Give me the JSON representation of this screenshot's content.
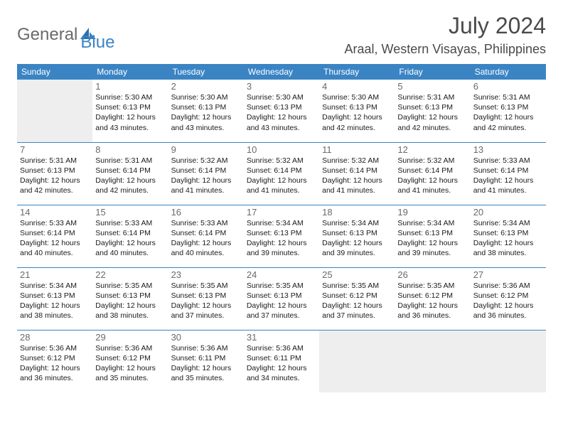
{
  "logo": {
    "text1": "General",
    "text2": "Blue"
  },
  "title": "July 2024",
  "location": "Araal, Western Visayas, Philippines",
  "colors": {
    "accent": "#3a84c4",
    "logo_gray": "#6a6a6a",
    "text_dark": "#1a1a1a",
    "muted": "#6a6a6a",
    "empty_bg": "#eeeeee",
    "bg": "#ffffff"
  },
  "days_of_week": [
    "Sunday",
    "Monday",
    "Tuesday",
    "Wednesday",
    "Thursday",
    "Friday",
    "Saturday"
  ],
  "weeks": [
    [
      null,
      {
        "n": "1",
        "sr": "Sunrise: 5:30 AM",
        "ss": "Sunset: 6:13 PM",
        "d1": "Daylight: 12 hours",
        "d2": "and 43 minutes."
      },
      {
        "n": "2",
        "sr": "Sunrise: 5:30 AM",
        "ss": "Sunset: 6:13 PM",
        "d1": "Daylight: 12 hours",
        "d2": "and 43 minutes."
      },
      {
        "n": "3",
        "sr": "Sunrise: 5:30 AM",
        "ss": "Sunset: 6:13 PM",
        "d1": "Daylight: 12 hours",
        "d2": "and 43 minutes."
      },
      {
        "n": "4",
        "sr": "Sunrise: 5:30 AM",
        "ss": "Sunset: 6:13 PM",
        "d1": "Daylight: 12 hours",
        "d2": "and 42 minutes."
      },
      {
        "n": "5",
        "sr": "Sunrise: 5:31 AM",
        "ss": "Sunset: 6:13 PM",
        "d1": "Daylight: 12 hours",
        "d2": "and 42 minutes."
      },
      {
        "n": "6",
        "sr": "Sunrise: 5:31 AM",
        "ss": "Sunset: 6:13 PM",
        "d1": "Daylight: 12 hours",
        "d2": "and 42 minutes."
      }
    ],
    [
      {
        "n": "7",
        "sr": "Sunrise: 5:31 AM",
        "ss": "Sunset: 6:13 PM",
        "d1": "Daylight: 12 hours",
        "d2": "and 42 minutes."
      },
      {
        "n": "8",
        "sr": "Sunrise: 5:31 AM",
        "ss": "Sunset: 6:14 PM",
        "d1": "Daylight: 12 hours",
        "d2": "and 42 minutes."
      },
      {
        "n": "9",
        "sr": "Sunrise: 5:32 AM",
        "ss": "Sunset: 6:14 PM",
        "d1": "Daylight: 12 hours",
        "d2": "and 41 minutes."
      },
      {
        "n": "10",
        "sr": "Sunrise: 5:32 AM",
        "ss": "Sunset: 6:14 PM",
        "d1": "Daylight: 12 hours",
        "d2": "and 41 minutes."
      },
      {
        "n": "11",
        "sr": "Sunrise: 5:32 AM",
        "ss": "Sunset: 6:14 PM",
        "d1": "Daylight: 12 hours",
        "d2": "and 41 minutes."
      },
      {
        "n": "12",
        "sr": "Sunrise: 5:32 AM",
        "ss": "Sunset: 6:14 PM",
        "d1": "Daylight: 12 hours",
        "d2": "and 41 minutes."
      },
      {
        "n": "13",
        "sr": "Sunrise: 5:33 AM",
        "ss": "Sunset: 6:14 PM",
        "d1": "Daylight: 12 hours",
        "d2": "and 41 minutes."
      }
    ],
    [
      {
        "n": "14",
        "sr": "Sunrise: 5:33 AM",
        "ss": "Sunset: 6:14 PM",
        "d1": "Daylight: 12 hours",
        "d2": "and 40 minutes."
      },
      {
        "n": "15",
        "sr": "Sunrise: 5:33 AM",
        "ss": "Sunset: 6:14 PM",
        "d1": "Daylight: 12 hours",
        "d2": "and 40 minutes."
      },
      {
        "n": "16",
        "sr": "Sunrise: 5:33 AM",
        "ss": "Sunset: 6:14 PM",
        "d1": "Daylight: 12 hours",
        "d2": "and 40 minutes."
      },
      {
        "n": "17",
        "sr": "Sunrise: 5:34 AM",
        "ss": "Sunset: 6:13 PM",
        "d1": "Daylight: 12 hours",
        "d2": "and 39 minutes."
      },
      {
        "n": "18",
        "sr": "Sunrise: 5:34 AM",
        "ss": "Sunset: 6:13 PM",
        "d1": "Daylight: 12 hours",
        "d2": "and 39 minutes."
      },
      {
        "n": "19",
        "sr": "Sunrise: 5:34 AM",
        "ss": "Sunset: 6:13 PM",
        "d1": "Daylight: 12 hours",
        "d2": "and 39 minutes."
      },
      {
        "n": "20",
        "sr": "Sunrise: 5:34 AM",
        "ss": "Sunset: 6:13 PM",
        "d1": "Daylight: 12 hours",
        "d2": "and 38 minutes."
      }
    ],
    [
      {
        "n": "21",
        "sr": "Sunrise: 5:34 AM",
        "ss": "Sunset: 6:13 PM",
        "d1": "Daylight: 12 hours",
        "d2": "and 38 minutes."
      },
      {
        "n": "22",
        "sr": "Sunrise: 5:35 AM",
        "ss": "Sunset: 6:13 PM",
        "d1": "Daylight: 12 hours",
        "d2": "and 38 minutes."
      },
      {
        "n": "23",
        "sr": "Sunrise: 5:35 AM",
        "ss": "Sunset: 6:13 PM",
        "d1": "Daylight: 12 hours",
        "d2": "and 37 minutes."
      },
      {
        "n": "24",
        "sr": "Sunrise: 5:35 AM",
        "ss": "Sunset: 6:13 PM",
        "d1": "Daylight: 12 hours",
        "d2": "and 37 minutes."
      },
      {
        "n": "25",
        "sr": "Sunrise: 5:35 AM",
        "ss": "Sunset: 6:12 PM",
        "d1": "Daylight: 12 hours",
        "d2": "and 37 minutes."
      },
      {
        "n": "26",
        "sr": "Sunrise: 5:35 AM",
        "ss": "Sunset: 6:12 PM",
        "d1": "Daylight: 12 hours",
        "d2": "and 36 minutes."
      },
      {
        "n": "27",
        "sr": "Sunrise: 5:36 AM",
        "ss": "Sunset: 6:12 PM",
        "d1": "Daylight: 12 hours",
        "d2": "and 36 minutes."
      }
    ],
    [
      {
        "n": "28",
        "sr": "Sunrise: 5:36 AM",
        "ss": "Sunset: 6:12 PM",
        "d1": "Daylight: 12 hours",
        "d2": "and 36 minutes."
      },
      {
        "n": "29",
        "sr": "Sunrise: 5:36 AM",
        "ss": "Sunset: 6:12 PM",
        "d1": "Daylight: 12 hours",
        "d2": "and 35 minutes."
      },
      {
        "n": "30",
        "sr": "Sunrise: 5:36 AM",
        "ss": "Sunset: 6:11 PM",
        "d1": "Daylight: 12 hours",
        "d2": "and 35 minutes."
      },
      {
        "n": "31",
        "sr": "Sunrise: 5:36 AM",
        "ss": "Sunset: 6:11 PM",
        "d1": "Daylight: 12 hours",
        "d2": "and 34 minutes."
      },
      null,
      null,
      null
    ]
  ]
}
